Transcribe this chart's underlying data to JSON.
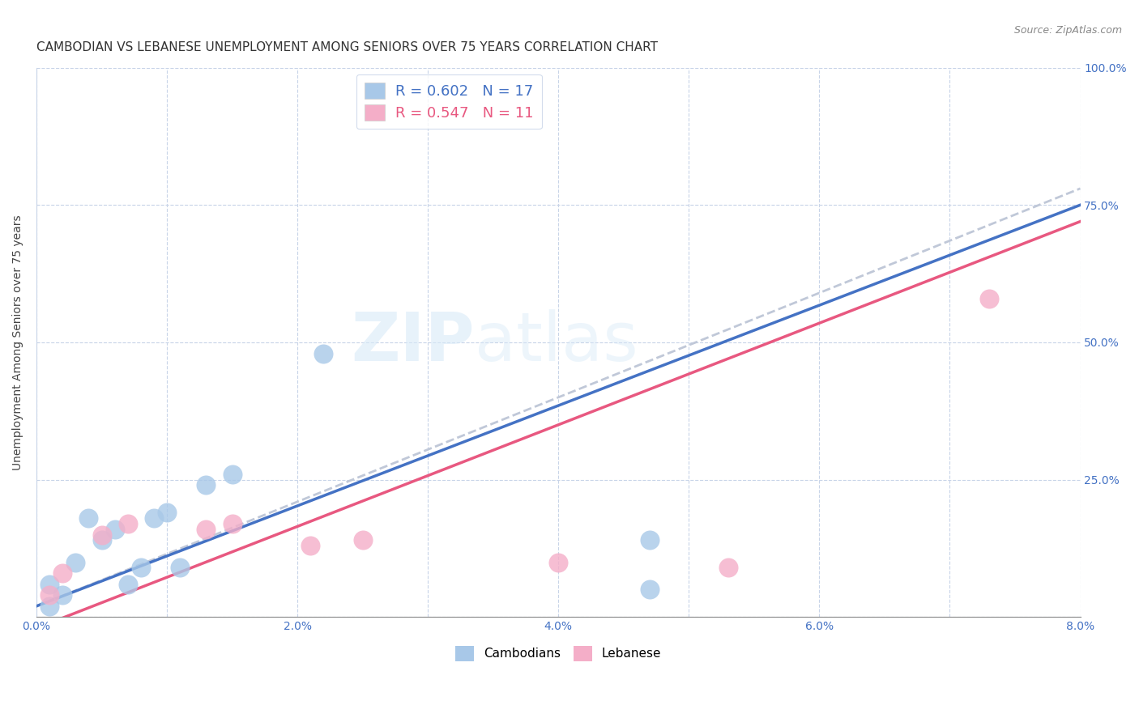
{
  "title": "CAMBODIAN VS LEBANESE UNEMPLOYMENT AMONG SENIORS OVER 75 YEARS CORRELATION CHART",
  "source": "Source: ZipAtlas.com",
  "ylabel": "Unemployment Among Seniors over 75 years",
  "xlabel": "",
  "xlim": [
    0.0,
    0.08
  ],
  "ylim": [
    0.0,
    1.0
  ],
  "xtick_positions": [
    0.0,
    0.01,
    0.02,
    0.03,
    0.04,
    0.05,
    0.06,
    0.07,
    0.08
  ],
  "xticklabels": [
    "0.0%",
    "",
    "2.0%",
    "",
    "4.0%",
    "",
    "6.0%",
    "",
    "8.0%"
  ],
  "ytick_positions": [
    0.0,
    0.25,
    0.5,
    0.75,
    1.0
  ],
  "yticklabels_right": [
    "",
    "25.0%",
    "50.0%",
    "75.0%",
    "100.0%"
  ],
  "cambodian_color": "#a8c8e8",
  "lebanese_color": "#f4aec8",
  "cambodian_line_color": "#4472c4",
  "lebanese_line_color": "#e85880",
  "combined_line_color": "#c0c8d8",
  "r_cambodian": 0.602,
  "n_cambodian": 17,
  "r_lebanese": 0.547,
  "n_lebanese": 11,
  "cambodian_x": [
    0.001,
    0.001,
    0.002,
    0.003,
    0.004,
    0.005,
    0.006,
    0.007,
    0.008,
    0.009,
    0.01,
    0.011,
    0.013,
    0.015,
    0.022,
    0.047,
    0.047
  ],
  "cambodian_y": [
    0.02,
    0.06,
    0.04,
    0.1,
    0.18,
    0.14,
    0.16,
    0.06,
    0.09,
    0.18,
    0.19,
    0.09,
    0.24,
    0.26,
    0.48,
    0.05,
    0.14
  ],
  "lebanese_x": [
    0.001,
    0.002,
    0.005,
    0.007,
    0.013,
    0.015,
    0.021,
    0.025,
    0.04,
    0.053,
    0.073
  ],
  "lebanese_y": [
    0.04,
    0.08,
    0.15,
    0.17,
    0.16,
    0.17,
    0.13,
    0.14,
    0.1,
    0.09,
    0.58
  ],
  "cambodian_line_x": [
    0.0,
    0.08
  ],
  "cambodian_line_y": [
    0.02,
    0.75
  ],
  "lebanese_line_x": [
    0.0,
    0.08
  ],
  "lebanese_line_y": [
    -0.02,
    0.72
  ],
  "dashed_line_x": [
    0.0,
    0.08
  ],
  "dashed_line_y": [
    0.02,
    0.78
  ],
  "watermark": "ZIPatlas",
  "background_color": "#ffffff",
  "grid_color": "#c8d4e8",
  "title_fontsize": 11,
  "label_fontsize": 10,
  "tick_fontsize": 10,
  "right_tick_color": "#4472c4",
  "marker_size": 300
}
